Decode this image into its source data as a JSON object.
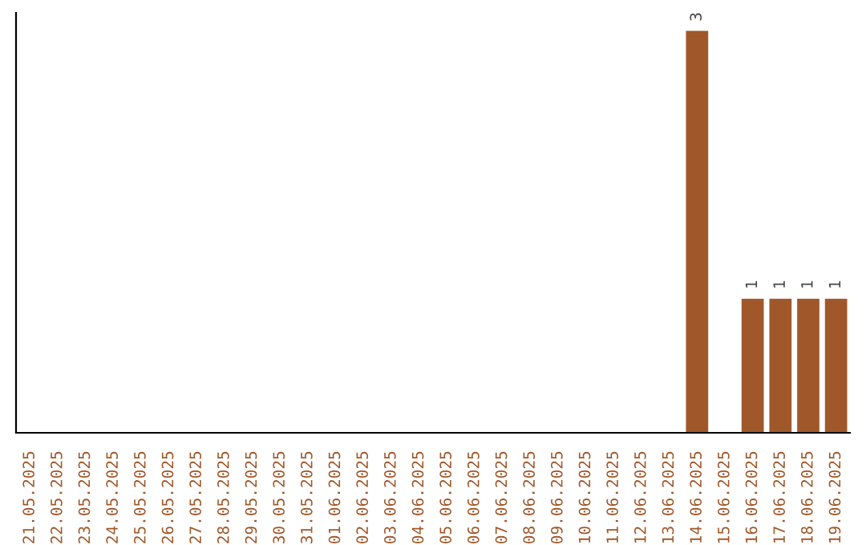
{
  "chart_data": {
    "type": "bar",
    "categories": [
      "21.05.2025",
      "22.05.2025",
      "23.05.2025",
      "24.05.2025",
      "25.05.2025",
      "26.05.2025",
      "27.05.2025",
      "28.05.2025",
      "29.05.2025",
      "30.05.2025",
      "31.05.2025",
      "01.06.2025",
      "02.06.2025",
      "03.06.2025",
      "04.06.2025",
      "05.06.2025",
      "06.06.2025",
      "07.06.2025",
      "08.06.2025",
      "09.06.2025",
      "10.06.2025",
      "11.06.2025",
      "12.06.2025",
      "13.06.2025",
      "14.06.2025",
      "15.06.2025",
      "16.06.2025",
      "17.06.2025",
      "18.06.2025",
      "19.06.2025"
    ],
    "values": [
      null,
      null,
      null,
      null,
      null,
      null,
      null,
      null,
      null,
      null,
      null,
      null,
      null,
      null,
      null,
      null,
      null,
      null,
      null,
      null,
      null,
      null,
      null,
      null,
      3,
      null,
      1,
      1,
      1,
      1
    ],
    "data_labels": true,
    "color": "#a0582a",
    "tick_labels": "x",
    "grid": false
  }
}
